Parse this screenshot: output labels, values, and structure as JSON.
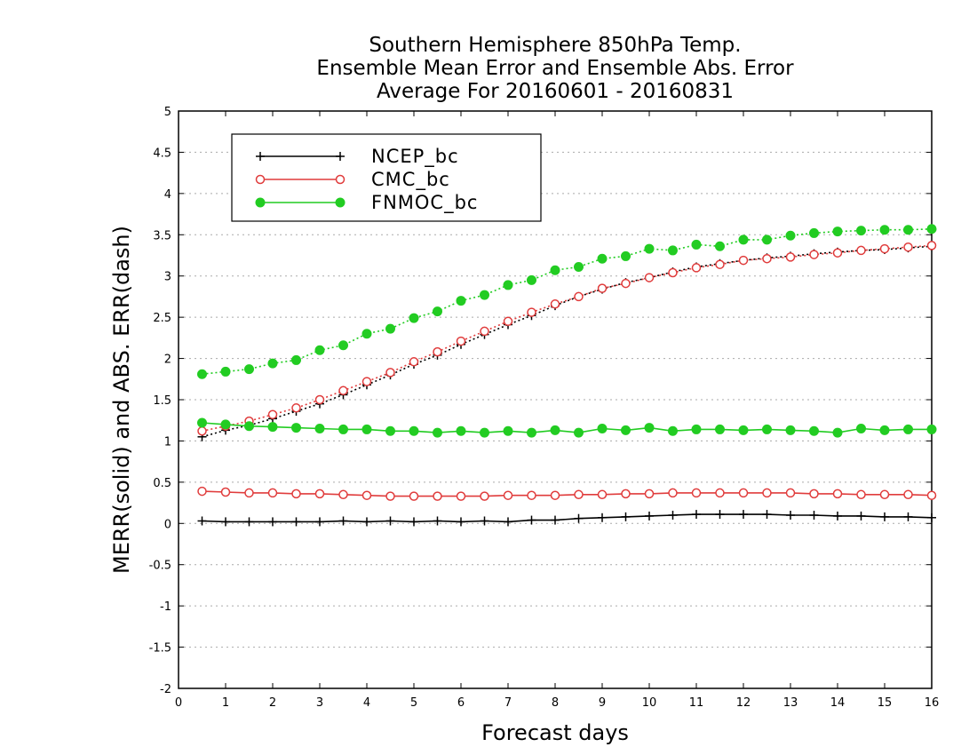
{
  "chart_data": {
    "type": "line",
    "title": [
      "Southern Hemisphere 850hPa Temp.",
      "Ensemble Mean Error and Ensemble Abs. Error",
      "Average For 20160601 - 20160831"
    ],
    "xlabel": "Forecast days",
    "ylabel": "MERR(solid) and ABS. ERR(dash)",
    "xlim": [
      0,
      16
    ],
    "ylim": [
      -2,
      5
    ],
    "xticks": [
      "0",
      "1",
      "2",
      "3",
      "4",
      "5",
      "6",
      "7",
      "8",
      "9",
      "10",
      "11",
      "12",
      "13",
      "14",
      "15",
      "16"
    ],
    "yticks": [
      "-2",
      "-1.5",
      "-1",
      "-0.5",
      "0",
      "0.5",
      "1",
      "1.5",
      "2",
      "2.5",
      "3",
      "3.5",
      "4",
      "4.5",
      "5"
    ],
    "grid": true,
    "legend_position": "top-left",
    "x": [
      0.5,
      1,
      1.5,
      2,
      2.5,
      3,
      3.5,
      4,
      4.5,
      5,
      5.5,
      6,
      6.5,
      7,
      7.5,
      8,
      8.5,
      9,
      9.5,
      10,
      10.5,
      11,
      11.5,
      12,
      12.5,
      13,
      13.5,
      14,
      14.5,
      15,
      15.5,
      16
    ],
    "series": [
      {
        "name": "NCEP_bc",
        "color": "#000000",
        "marker": "plus",
        "merr": [
          0.03,
          0.02,
          0.02,
          0.02,
          0.02,
          0.02,
          0.03,
          0.02,
          0.03,
          0.02,
          0.03,
          0.02,
          0.03,
          0.02,
          0.04,
          0.04,
          0.06,
          0.07,
          0.08,
          0.09,
          0.1,
          0.11,
          0.11,
          0.11,
          0.11,
          0.1,
          0.1,
          0.09,
          0.09,
          0.08,
          0.08,
          0.07
        ],
        "abs_err": [
          1.05,
          1.13,
          1.19,
          1.27,
          1.36,
          1.45,
          1.56,
          1.68,
          1.8,
          1.93,
          2.04,
          2.17,
          2.29,
          2.41,
          2.52,
          2.64,
          2.75,
          2.84,
          2.92,
          2.98,
          3.05,
          3.11,
          3.15,
          3.19,
          3.22,
          3.24,
          3.27,
          3.29,
          3.31,
          3.32,
          3.34,
          3.36
        ]
      },
      {
        "name": "CMC_bc",
        "color": "#e03c3c",
        "marker": "open-circle",
        "merr": [
          0.39,
          0.38,
          0.37,
          0.37,
          0.36,
          0.36,
          0.35,
          0.34,
          0.33,
          0.33,
          0.33,
          0.33,
          0.33,
          0.34,
          0.34,
          0.34,
          0.35,
          0.35,
          0.36,
          0.36,
          0.37,
          0.37,
          0.37,
          0.37,
          0.37,
          0.37,
          0.36,
          0.36,
          0.35,
          0.35,
          0.35,
          0.34
        ],
        "abs_err": [
          1.12,
          1.18,
          1.24,
          1.32,
          1.4,
          1.5,
          1.61,
          1.72,
          1.83,
          1.96,
          2.08,
          2.21,
          2.33,
          2.45,
          2.56,
          2.66,
          2.75,
          2.85,
          2.91,
          2.98,
          3.04,
          3.1,
          3.14,
          3.19,
          3.21,
          3.23,
          3.26,
          3.28,
          3.31,
          3.33,
          3.35,
          3.37
        ]
      },
      {
        "name": "FNMOC_bc",
        "color": "#22cc22",
        "marker": "filled-circle",
        "merr": [
          1.22,
          1.2,
          1.18,
          1.17,
          1.16,
          1.15,
          1.14,
          1.14,
          1.12,
          1.12,
          1.1,
          1.12,
          1.1,
          1.12,
          1.1,
          1.13,
          1.1,
          1.15,
          1.13,
          1.16,
          1.12,
          1.14,
          1.14,
          1.13,
          1.14,
          1.13,
          1.12,
          1.1,
          1.15,
          1.13,
          1.14,
          1.14
        ],
        "abs_err": [
          1.81,
          1.84,
          1.87,
          1.94,
          1.98,
          2.1,
          2.16,
          2.3,
          2.36,
          2.49,
          2.57,
          2.7,
          2.77,
          2.89,
          2.95,
          3.07,
          3.11,
          3.21,
          3.24,
          3.33,
          3.31,
          3.38,
          3.36,
          3.44,
          3.44,
          3.49,
          3.52,
          3.54,
          3.55,
          3.56,
          3.56,
          3.57
        ]
      }
    ]
  }
}
